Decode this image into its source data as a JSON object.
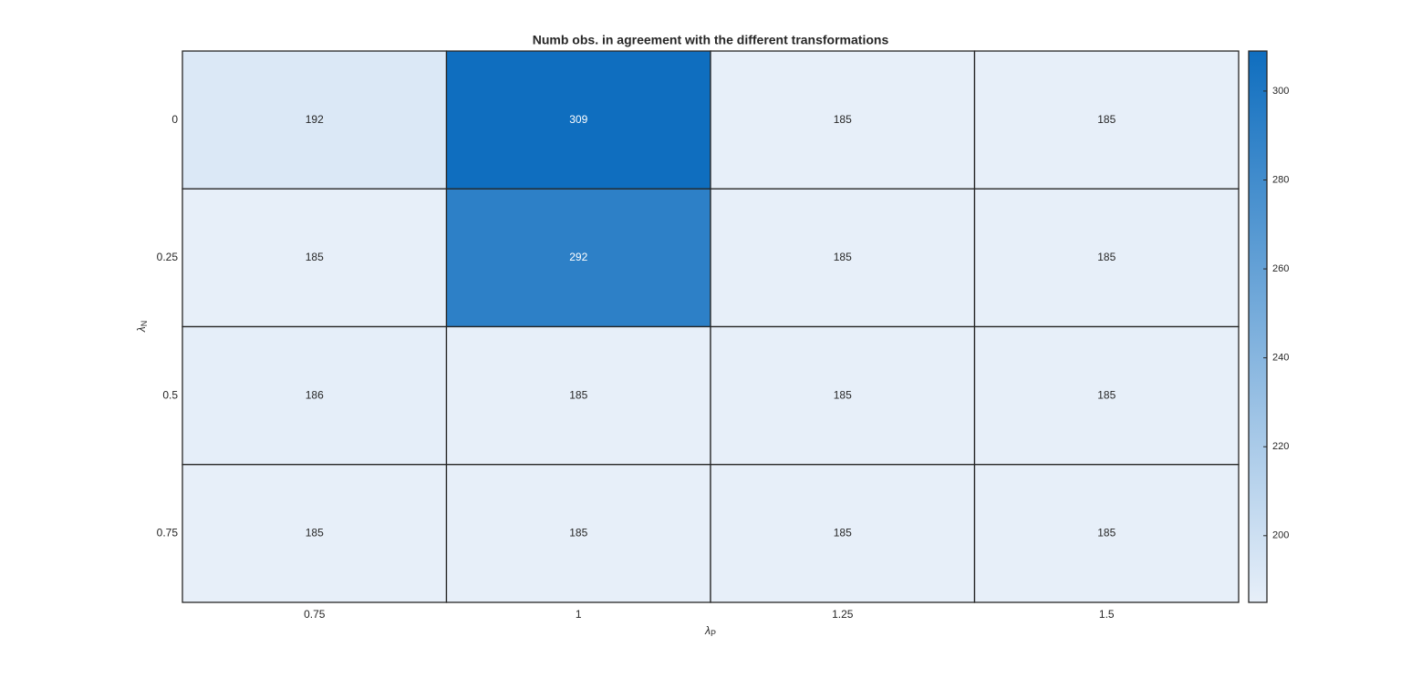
{
  "chart_data": {
    "type": "heatmap",
    "title": "Numb obs. in agreement with the different transformations",
    "xlabel": [
      "λ",
      "P"
    ],
    "ylabel": [
      "λ",
      "N"
    ],
    "x": [
      "0.75",
      "1",
      "1.25",
      "1.5"
    ],
    "y": [
      "0",
      "0.25",
      "0.5",
      "0.75"
    ],
    "values": [
      [
        192,
        309,
        185,
        185
      ],
      [
        185,
        292,
        185,
        185
      ],
      [
        186,
        185,
        185,
        185
      ],
      [
        185,
        185,
        185,
        185
      ]
    ],
    "clim": [
      185,
      309
    ],
    "cticks": [
      200,
      220,
      240,
      260,
      280,
      300
    ],
    "colormap": [
      "#e7eff9",
      "#0f6ebf"
    ]
  }
}
